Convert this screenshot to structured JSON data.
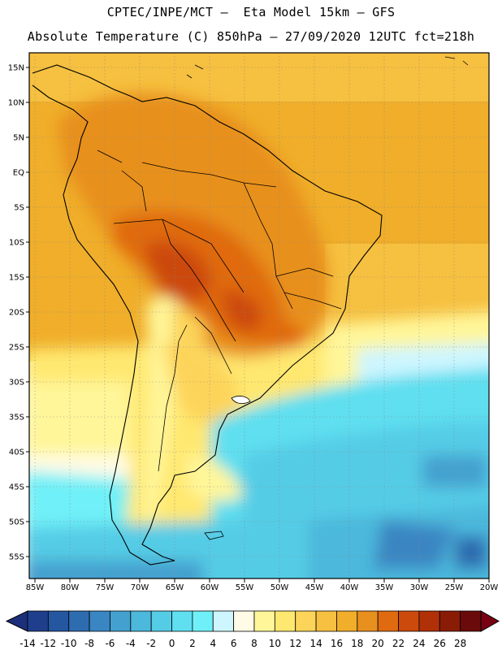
{
  "header": {
    "line1": "CPTEC/INPE/MCT –  Eta Model 15km – GFS",
    "line2": "Absolute Temperature (C) 850hPa – 27/09/2020 12UTC fct=218h"
  },
  "map": {
    "lat_labels": [
      "15N",
      "10N",
      "5N",
      "EQ",
      "5S",
      "10S",
      "15S",
      "20S",
      "25S",
      "30S",
      "35S",
      "40S",
      "45S",
      "50S",
      "55S"
    ],
    "lon_labels": [
      "85W",
      "80W",
      "75W",
      "70W",
      "65W",
      "60W",
      "55W",
      "50W",
      "45W",
      "40W",
      "35W",
      "30W",
      "25W",
      "20W"
    ]
  },
  "colorbar": {
    "labels": [
      "-14",
      "-12",
      "-10",
      "-8",
      "-6",
      "-4",
      "-2",
      "0",
      "2",
      "4",
      "6",
      "8",
      "10",
      "12",
      "14",
      "16",
      "18",
      "20",
      "22",
      "24",
      "26",
      "28"
    ],
    "colors": [
      "#1f3f8c",
      "#2556a0",
      "#2e6cb0",
      "#3a86c2",
      "#44a0cf",
      "#4bb8dc",
      "#55cce6",
      "#5fdff0",
      "#6ff0f8",
      "#cdf6ff",
      "#fffbe6",
      "#fff69a",
      "#ffe870",
      "#fdd45a",
      "#f6c040",
      "#f0ae2a",
      "#e8901e",
      "#e06a10",
      "#cc4a0c",
      "#b03008",
      "#8a1c06",
      "#6a0a0a"
    ],
    "under_color": "#1d2f7a",
    "over_color": "#780012"
  }
}
